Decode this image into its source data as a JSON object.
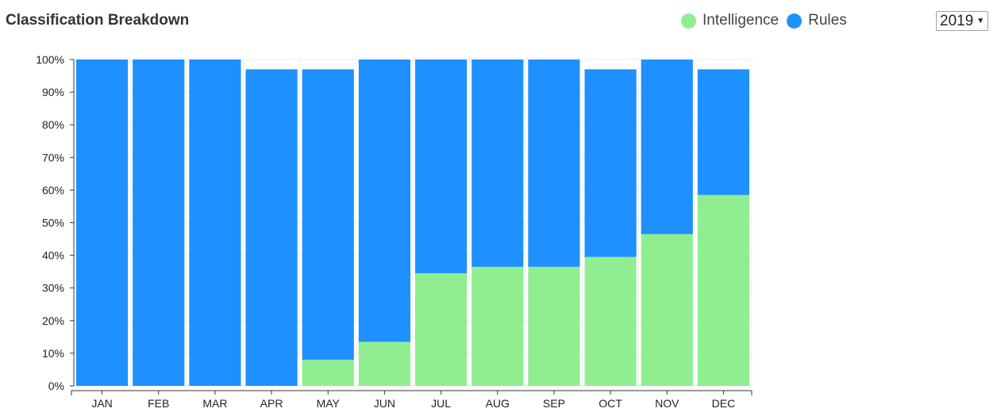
{
  "header": {
    "title": "Classification Breakdown"
  },
  "legend": [
    {
      "name": "Intelligence",
      "color": "#90EE90"
    },
    {
      "name": "Rules",
      "color": "#1E90FF"
    }
  ],
  "year_select": {
    "selected": "2019"
  },
  "chart_data": {
    "type": "bar",
    "stacked": true,
    "title": "Classification Breakdown",
    "categories": [
      "JAN",
      "FEB",
      "MAR",
      "APR",
      "MAY",
      "JUN",
      "JUL",
      "AUG",
      "SEP",
      "OCT",
      "NOV",
      "DEC"
    ],
    "series": [
      {
        "name": "Intelligence",
        "color": "#90EE90",
        "values": [
          0,
          0,
          0,
          0,
          8,
          13.5,
          34.5,
          36.5,
          36.5,
          39.5,
          46.5,
          58.5
        ]
      },
      {
        "name": "Rules",
        "color": "#1E90FF",
        "values": [
          100,
          100,
          100,
          97,
          89,
          86.5,
          65.5,
          63.5,
          63.5,
          57.5,
          53.5,
          38.5
        ]
      }
    ],
    "ylim": [
      0,
      100
    ],
    "yticks": [
      "0%",
      "10%",
      "20%",
      "30%",
      "40%",
      "50%",
      "60%",
      "70%",
      "80%",
      "90%",
      "100%"
    ],
    "grid": true,
    "legend_position": "top-right"
  }
}
